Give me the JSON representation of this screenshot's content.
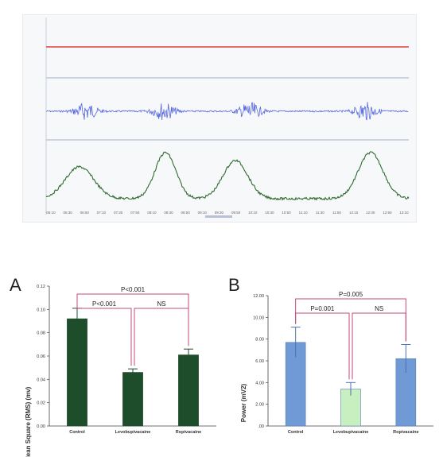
{
  "recording": {
    "type": "trace-recording",
    "time_labels": [
      "06:10",
      "06:30",
      "06:50",
      "07:10",
      "07:30",
      "07:50",
      "08:10",
      "08:30",
      "08:50",
      "09:10",
      "09:30",
      "09:50",
      "10:10",
      "10:30",
      "10:50",
      "11:10",
      "11:30",
      "11:50",
      "12:10",
      "12:30",
      "12:50",
      "13:10"
    ],
    "colors": {
      "top": "#e0413a",
      "emg": "#5566e0",
      "rms": "#2f6b2f",
      "divider": "#9fb0c8"
    }
  },
  "chart_data": [
    {
      "type": "bar",
      "panel_label": "A",
      "ylabel": "Root Mean Square (RMS) (mv)",
      "categories": [
        "Control",
        "Levobupivacaine",
        "Ropivacaine"
      ],
      "values": [
        0.092,
        0.046,
        0.061
      ],
      "errors": [
        0.009,
        0.003,
        0.005
      ],
      "ylim": [
        0,
        0.12
      ],
      "yticks": [
        "0.00",
        "0.02",
        "0.04",
        "0.06",
        "0.08",
        "0.10",
        "0.12"
      ],
      "bar_color": "#1e4d2b",
      "significance": [
        {
          "label": "P<0.001",
          "from": 0,
          "to": 2,
          "level": 1
        },
        {
          "label": "P<0.001",
          "from": 0,
          "to": 1,
          "level": 2
        },
        {
          "label": "NS",
          "from": 1,
          "to": 2,
          "level": 2
        }
      ],
      "sig_color": "#c2497a"
    },
    {
      "type": "bar",
      "panel_label": "B",
      "ylabel": "Power (mV2)",
      "categories": [
        "Control",
        "Levobupivacaine",
        "Ropivacaine"
      ],
      "values": [
        7.7,
        3.4,
        6.2
      ],
      "errors": [
        1.4,
        0.6,
        1.3
      ],
      "bar_colors": [
        "#6f9ad6",
        "#c8efc0",
        "#6f9ad6"
      ],
      "ylim": [
        0,
        12
      ],
      "yticks": [
        ".00",
        "2.00",
        "4.00",
        "6.00",
        "8.00",
        "10.00",
        "12.00"
      ],
      "significance": [
        {
          "label": "P=0.005",
          "from": 0,
          "to": 2,
          "level": 1
        },
        {
          "label": "P=0.001",
          "from": 0,
          "to": 1,
          "level": 2
        },
        {
          "label": "NS",
          "from": 1,
          "to": 2,
          "level": 2
        }
      ],
      "sig_color": "#c2497a"
    }
  ]
}
